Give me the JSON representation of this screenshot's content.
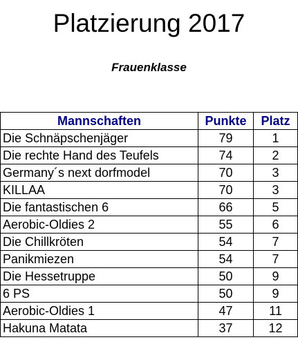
{
  "title": "Platzierung 2017",
  "subtitle": "Frauenklasse",
  "table": {
    "headers": {
      "team": "Mannschaften",
      "points": "Punkte",
      "place": "Platz"
    },
    "header_color": "#000080",
    "rows": [
      {
        "team": "Die Schnäpschenjäger",
        "points": "79",
        "place": "1"
      },
      {
        "team": "Die rechte Hand des Teufels",
        "points": "74",
        "place": "2"
      },
      {
        "team": "Germany´s next dorfmodel",
        "points": "70",
        "place": "3"
      },
      {
        "team": "KILLAA",
        "points": "70",
        "place": "3"
      },
      {
        "team": "Die fantastischen 6",
        "points": "66",
        "place": "5"
      },
      {
        "team": "Aerobic-Oldies 2",
        "points": "55",
        "place": "6"
      },
      {
        "team": "Die Chillkröten",
        "points": "54",
        "place": "7"
      },
      {
        "team": "Panikmiezen",
        "points": "54",
        "place": "7"
      },
      {
        "team": "Die Hessetruppe",
        "points": "50",
        "place": "9"
      },
      {
        "team": "6 PS",
        "points": "50",
        "place": "9"
      },
      {
        "team": "Aerobic-Oldies 1",
        "points": "47",
        "place": "11"
      },
      {
        "team": "Hakuna Matata",
        "points": "37",
        "place": "12"
      }
    ]
  }
}
